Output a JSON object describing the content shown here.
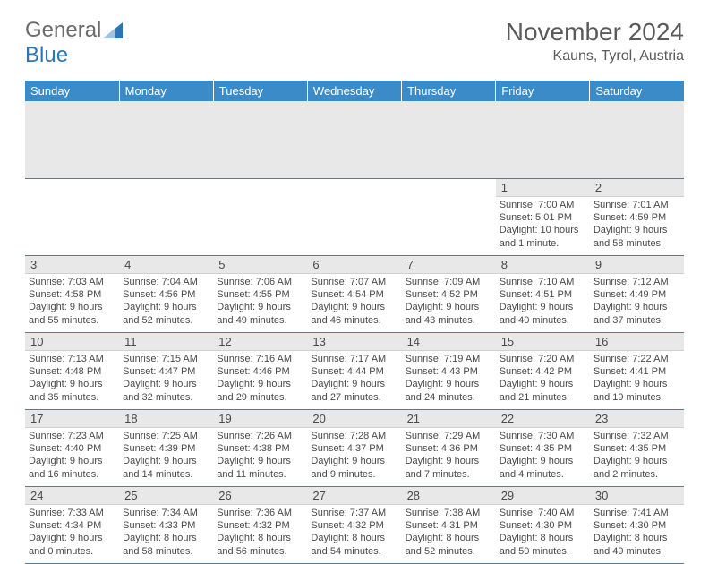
{
  "logo": {
    "gray": "General",
    "blue": "Blue"
  },
  "title": "November 2024",
  "location": "Kauns, Tyrol, Austria",
  "colors": {
    "header_bg": "#3b8bc9",
    "header_text": "#ffffff",
    "daynum_bg": "#e8e8e8",
    "text": "#4a4a4a",
    "rule": "#5a7a9a",
    "logo_blue": "#2e75b6",
    "logo_gray": "#6b6b6b"
  },
  "weekdays": [
    "Sunday",
    "Monday",
    "Tuesday",
    "Wednesday",
    "Thursday",
    "Friday",
    "Saturday"
  ],
  "weeks": [
    [
      null,
      null,
      null,
      null,
      null,
      {
        "n": "1",
        "sr": "Sunrise: 7:00 AM",
        "ss": "Sunset: 5:01 PM",
        "dl1": "Daylight: 10 hours",
        "dl2": "and 1 minute."
      },
      {
        "n": "2",
        "sr": "Sunrise: 7:01 AM",
        "ss": "Sunset: 4:59 PM",
        "dl1": "Daylight: 9 hours",
        "dl2": "and 58 minutes."
      }
    ],
    [
      {
        "n": "3",
        "sr": "Sunrise: 7:03 AM",
        "ss": "Sunset: 4:58 PM",
        "dl1": "Daylight: 9 hours",
        "dl2": "and 55 minutes."
      },
      {
        "n": "4",
        "sr": "Sunrise: 7:04 AM",
        "ss": "Sunset: 4:56 PM",
        "dl1": "Daylight: 9 hours",
        "dl2": "and 52 minutes."
      },
      {
        "n": "5",
        "sr": "Sunrise: 7:06 AM",
        "ss": "Sunset: 4:55 PM",
        "dl1": "Daylight: 9 hours",
        "dl2": "and 49 minutes."
      },
      {
        "n": "6",
        "sr": "Sunrise: 7:07 AM",
        "ss": "Sunset: 4:54 PM",
        "dl1": "Daylight: 9 hours",
        "dl2": "and 46 minutes."
      },
      {
        "n": "7",
        "sr": "Sunrise: 7:09 AM",
        "ss": "Sunset: 4:52 PM",
        "dl1": "Daylight: 9 hours",
        "dl2": "and 43 minutes."
      },
      {
        "n": "8",
        "sr": "Sunrise: 7:10 AM",
        "ss": "Sunset: 4:51 PM",
        "dl1": "Daylight: 9 hours",
        "dl2": "and 40 minutes."
      },
      {
        "n": "9",
        "sr": "Sunrise: 7:12 AM",
        "ss": "Sunset: 4:49 PM",
        "dl1": "Daylight: 9 hours",
        "dl2": "and 37 minutes."
      }
    ],
    [
      {
        "n": "10",
        "sr": "Sunrise: 7:13 AM",
        "ss": "Sunset: 4:48 PM",
        "dl1": "Daylight: 9 hours",
        "dl2": "and 35 minutes."
      },
      {
        "n": "11",
        "sr": "Sunrise: 7:15 AM",
        "ss": "Sunset: 4:47 PM",
        "dl1": "Daylight: 9 hours",
        "dl2": "and 32 minutes."
      },
      {
        "n": "12",
        "sr": "Sunrise: 7:16 AM",
        "ss": "Sunset: 4:46 PM",
        "dl1": "Daylight: 9 hours",
        "dl2": "and 29 minutes."
      },
      {
        "n": "13",
        "sr": "Sunrise: 7:17 AM",
        "ss": "Sunset: 4:44 PM",
        "dl1": "Daylight: 9 hours",
        "dl2": "and 27 minutes."
      },
      {
        "n": "14",
        "sr": "Sunrise: 7:19 AM",
        "ss": "Sunset: 4:43 PM",
        "dl1": "Daylight: 9 hours",
        "dl2": "and 24 minutes."
      },
      {
        "n": "15",
        "sr": "Sunrise: 7:20 AM",
        "ss": "Sunset: 4:42 PM",
        "dl1": "Daylight: 9 hours",
        "dl2": "and 21 minutes."
      },
      {
        "n": "16",
        "sr": "Sunrise: 7:22 AM",
        "ss": "Sunset: 4:41 PM",
        "dl1": "Daylight: 9 hours",
        "dl2": "and 19 minutes."
      }
    ],
    [
      {
        "n": "17",
        "sr": "Sunrise: 7:23 AM",
        "ss": "Sunset: 4:40 PM",
        "dl1": "Daylight: 9 hours",
        "dl2": "and 16 minutes."
      },
      {
        "n": "18",
        "sr": "Sunrise: 7:25 AM",
        "ss": "Sunset: 4:39 PM",
        "dl1": "Daylight: 9 hours",
        "dl2": "and 14 minutes."
      },
      {
        "n": "19",
        "sr": "Sunrise: 7:26 AM",
        "ss": "Sunset: 4:38 PM",
        "dl1": "Daylight: 9 hours",
        "dl2": "and 11 minutes."
      },
      {
        "n": "20",
        "sr": "Sunrise: 7:28 AM",
        "ss": "Sunset: 4:37 PM",
        "dl1": "Daylight: 9 hours",
        "dl2": "and 9 minutes."
      },
      {
        "n": "21",
        "sr": "Sunrise: 7:29 AM",
        "ss": "Sunset: 4:36 PM",
        "dl1": "Daylight: 9 hours",
        "dl2": "and 7 minutes."
      },
      {
        "n": "22",
        "sr": "Sunrise: 7:30 AM",
        "ss": "Sunset: 4:35 PM",
        "dl1": "Daylight: 9 hours",
        "dl2": "and 4 minutes."
      },
      {
        "n": "23",
        "sr": "Sunrise: 7:32 AM",
        "ss": "Sunset: 4:35 PM",
        "dl1": "Daylight: 9 hours",
        "dl2": "and 2 minutes."
      }
    ],
    [
      {
        "n": "24",
        "sr": "Sunrise: 7:33 AM",
        "ss": "Sunset: 4:34 PM",
        "dl1": "Daylight: 9 hours",
        "dl2": "and 0 minutes."
      },
      {
        "n": "25",
        "sr": "Sunrise: 7:34 AM",
        "ss": "Sunset: 4:33 PM",
        "dl1": "Daylight: 8 hours",
        "dl2": "and 58 minutes."
      },
      {
        "n": "26",
        "sr": "Sunrise: 7:36 AM",
        "ss": "Sunset: 4:32 PM",
        "dl1": "Daylight: 8 hours",
        "dl2": "and 56 minutes."
      },
      {
        "n": "27",
        "sr": "Sunrise: 7:37 AM",
        "ss": "Sunset: 4:32 PM",
        "dl1": "Daylight: 8 hours",
        "dl2": "and 54 minutes."
      },
      {
        "n": "28",
        "sr": "Sunrise: 7:38 AM",
        "ss": "Sunset: 4:31 PM",
        "dl1": "Daylight: 8 hours",
        "dl2": "and 52 minutes."
      },
      {
        "n": "29",
        "sr": "Sunrise: 7:40 AM",
        "ss": "Sunset: 4:30 PM",
        "dl1": "Daylight: 8 hours",
        "dl2": "and 50 minutes."
      },
      {
        "n": "30",
        "sr": "Sunrise: 7:41 AM",
        "ss": "Sunset: 4:30 PM",
        "dl1": "Daylight: 8 hours",
        "dl2": "and 49 minutes."
      }
    ]
  ]
}
